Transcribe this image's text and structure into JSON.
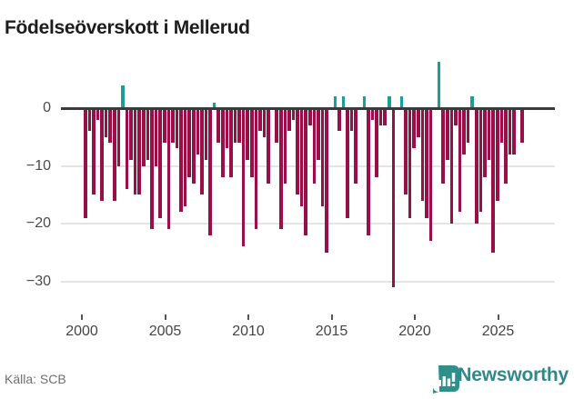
{
  "title": "Födelseöverskott i Mellerud",
  "footer": {
    "source_label": "Källa: SCB",
    "brand_name": "Newsworthy"
  },
  "colors": {
    "negative_bar": "#990f47",
    "positive_bar": "#1b9e96",
    "axis_line": "#3a3a3a",
    "gridline": "#e4e4e4",
    "title_text": "#1d1d1d",
    "brand_teal": "#33878a"
  },
  "chart_data": {
    "type": "bar",
    "title": "Födelseöverskott i Mellerud",
    "xlabel": "",
    "ylabel": "",
    "frequency": "quarterly",
    "start_period": "2000 Q1",
    "end_period": "2026 Q2",
    "grid": "horizontal",
    "legend": "none",
    "ylim": [
      -33,
      9
    ],
    "y_ticks": [
      0,
      -10,
      -20,
      -30
    ],
    "y_tick_labels": [
      "0",
      "−10",
      "−20",
      "−30"
    ],
    "x_tick_years": [
      2000,
      2005,
      2010,
      2015,
      2020,
      2025
    ],
    "x_tick_labels": [
      "2000",
      "2005",
      "2010",
      "2015",
      "2020",
      "2025"
    ],
    "positive_color": "#1b9e96",
    "negative_color": "#990f47",
    "values": [
      -19,
      -4,
      -15,
      -2,
      -16,
      -5,
      -6,
      -16,
      -10,
      4,
      -14,
      -9,
      -15,
      -15,
      -10,
      -9,
      -21,
      -10,
      -19,
      -6,
      -21,
      -6,
      -7,
      -18,
      -17,
      -12,
      -13,
      -8,
      -15,
      -9,
      -22,
      1,
      -6,
      -12,
      -7,
      -12,
      -6,
      -6,
      -24,
      -9,
      -12,
      -21,
      -4,
      -5,
      -13,
      0,
      -6,
      -21,
      -13,
      -4,
      -2,
      -15,
      -17,
      -22,
      -3,
      -13,
      -9,
      -17,
      -25,
      0,
      2,
      -4,
      2,
      -19,
      -4,
      -13,
      0,
      2,
      -22,
      -2,
      -12,
      -3,
      -3,
      2,
      -31,
      0,
      2,
      -15,
      -19,
      -7,
      -5,
      -16,
      -19,
      -23,
      0,
      8,
      -13,
      -9,
      -20,
      -3,
      -18,
      -8,
      -6,
      2,
      -20,
      -18,
      -12,
      -9,
      -25,
      -16,
      -6,
      -13,
      -8,
      -8,
      0,
      -6
    ]
  }
}
